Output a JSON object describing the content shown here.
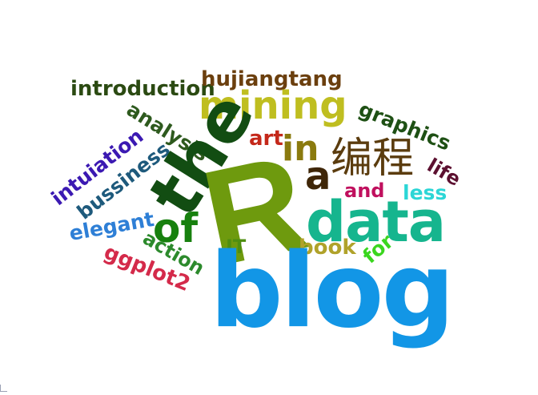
{
  "words": {
    "blog": {
      "text": "blog",
      "color": "#1296e6"
    },
    "R": {
      "text": "R",
      "color": "#6e9a0e"
    },
    "data": {
      "text": "data",
      "color": "#16b58e"
    },
    "the": {
      "text": "the",
      "color": "#124d12"
    },
    "mining": {
      "text": "mining",
      "color": "#bfbe20"
    },
    "biancheng": {
      "text": "编程",
      "color": "#5b3c0e"
    },
    "of": {
      "text": "of",
      "color": "#17800e"
    },
    "in": {
      "text": "in",
      "color": "#8a7a0e"
    },
    "a": {
      "text": "a",
      "color": "#3f2608"
    },
    "hujiangtang": {
      "text": "hujiangtang",
      "color": "#6b3f0e"
    },
    "introduction": {
      "text": "introduction",
      "color": "#2b4a12"
    },
    "graphics": {
      "text": "graphics",
      "color": "#1e5014"
    },
    "analysis": {
      "text": "analysis",
      "color": "#2e5a1e"
    },
    "art": {
      "text": "art",
      "color": "#c4281a"
    },
    "intuiation": {
      "text": "intuiation",
      "color": "#3b19b2"
    },
    "bussiness": {
      "text": "bussiness",
      "color": "#1e5a7c"
    },
    "life": {
      "text": "life",
      "color": "#5c1030"
    },
    "and": {
      "text": "and",
      "color": "#c0105e"
    },
    "less": {
      "text": "less",
      "color": "#2cd6d6"
    },
    "elegant": {
      "text": "elegant",
      "color": "#2e7fd6"
    },
    "IT": {
      "text": "IT",
      "color": "#4e8e10"
    },
    "book": {
      "text": "book",
      "color": "#b0a22a"
    },
    "for": {
      "text": "for",
      "color": "#3ad61e"
    },
    "action": {
      "text": "action",
      "color": "#2c8a2c"
    },
    "ggplot2": {
      "text": "ggplot2",
      "color": "#d42a4a"
    }
  }
}
